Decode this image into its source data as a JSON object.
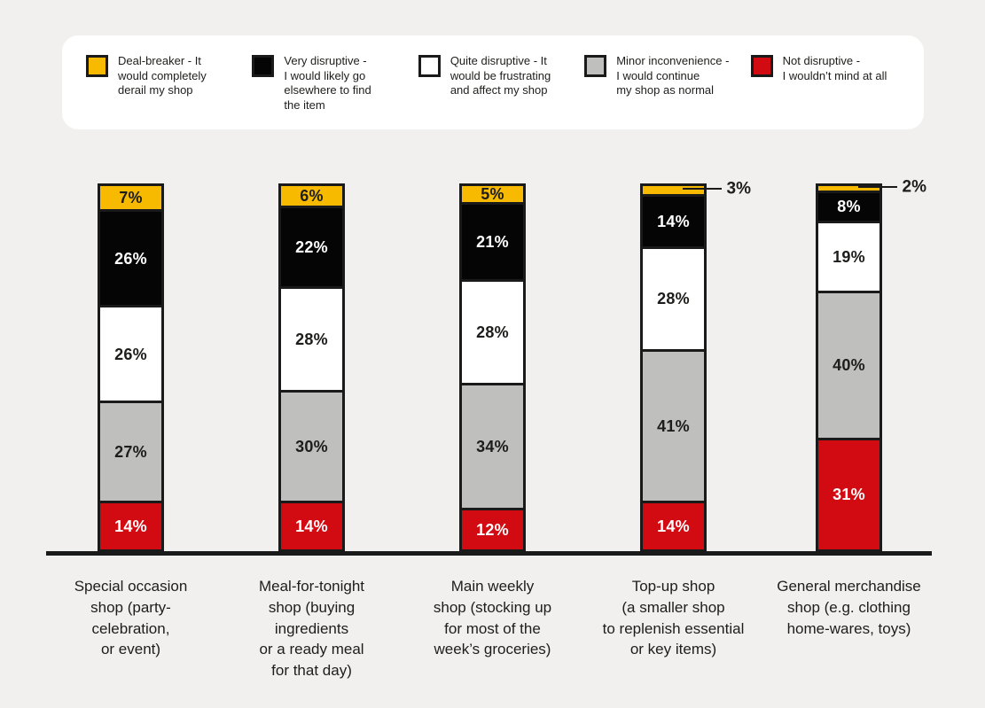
{
  "page": {
    "background_color": "#f1f0ef",
    "panel_color": "#ffffff",
    "outline_color": "#1a1a1a",
    "text_color": "#1d1d1b"
  },
  "legend": {
    "position": "top",
    "items": [
      {
        "swatch": "deal-breaker",
        "color": "#f7ba00",
        "label": "Deal-breaker - It\nwould completely\nderail my shop"
      },
      {
        "swatch": "very-disruptive",
        "color": "#050505",
        "label": "Very disruptive -\nI would likely go\nelsewhere to find\nthe item"
      },
      {
        "swatch": "quite-disruptive",
        "color": "#ffffff",
        "label": "Quite disruptive - It\nwould be frustrating\nand affect my shop"
      },
      {
        "swatch": "minor-inconvenience",
        "color": "#bfbfbe",
        "label": "Minor inconvenience -\nI would continue\nmy shop as normal"
      },
      {
        "swatch": "not-disruptive",
        "color": "#d20a11",
        "label": "Not disruptive -\nI wouldn’t mind at all"
      }
    ]
  },
  "chart_data": {
    "type": "bar",
    "stacked": true,
    "percent_stacked": true,
    "unit": "%",
    "ylim": [
      0,
      100
    ],
    "grid": false,
    "legend_position": "top",
    "callout_min_inside": 4,
    "categories": [
      "Special occasion\nshop (party-\ncelebration,\nor event)",
      "Meal-for-tonight\nshop (buying\ningredients\nor a ready meal\nfor that day)",
      "Main weekly\nshop (stocking up\nfor most of the\nweek’s groceries)",
      "Top-up shop\n(a smaller shop\nto replenish essential\nor key items)",
      "General merchandise\nshop (e.g. clothing\nhome-wares, toys)"
    ],
    "series": [
      {
        "name": "Deal-breaker - It would completely derail my shop",
        "color": "#f7ba00",
        "label_color": "#1d1d1b",
        "values": [
          7,
          6,
          5,
          3,
          2
        ]
      },
      {
        "name": "Very disruptive - I would likely go elsewhere to find the item",
        "color": "#050505",
        "label_color": "#ffffff",
        "values": [
          26,
          22,
          21,
          14,
          8
        ]
      },
      {
        "name": "Quite disruptive - It would be frustrating and affect my shop",
        "color": "#ffffff",
        "label_color": "#1d1d1b",
        "values": [
          26,
          28,
          28,
          28,
          19
        ]
      },
      {
        "name": "Minor inconvenience - I would continue my shop as normal",
        "color": "#bfbfbe",
        "label_color": "#1d1d1b",
        "values": [
          27,
          30,
          34,
          41,
          40
        ]
      },
      {
        "name": "Not disruptive - I wouldn’t mind at all",
        "color": "#d20a11",
        "label_color": "#ffffff",
        "values": [
          14,
          14,
          12,
          14,
          31
        ]
      }
    ]
  }
}
